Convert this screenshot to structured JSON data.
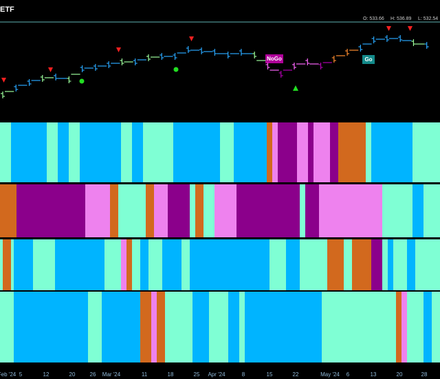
{
  "header": {
    "title": "ETF",
    "open": "O: 533.66",
    "high": "H: 536.89",
    "low": "L: 532.54"
  },
  "labels": {
    "nogo": "NoGo",
    "go": "Go"
  },
  "price_bars": {
    "values": [
      497,
      502,
      506,
      509,
      510,
      508,
      516,
      517,
      519,
      521,
      521,
      524,
      525,
      525,
      530,
      529,
      528,
      526,
      528,
      526,
      518,
      512,
      518,
      521,
      518,
      523,
      528,
      531,
      537,
      538,
      538,
      535,
      533
    ],
    "colors": [
      "#9cff9c",
      "#29a8ff",
      "#29a8ff",
      "#9cff9c",
      "#29a8ff",
      "#9cff9c",
      "#29a8ff",
      "#29a8ff",
      "#29a8ff",
      "#9cff9c",
      "#29a8ff",
      "#9cff9c",
      "#29a8ff",
      "#29a8ff",
      "#29a8ff",
      "#29a8ff",
      "#29a8ff",
      "#29a8ff",
      "#29a8ff",
      "#9cff9c",
      "#ff66ff",
      "#b000b0",
      "#ff66ff",
      "#ff66ff",
      "#b000b0",
      "#ff8c2e",
      "#ff8c2e",
      "#29a8ff",
      "#29a8ff",
      "#29a8ff",
      "#29a8ff",
      "#9cff9c",
      "#29a8ff"
    ]
  },
  "bands": [
    [
      [
        "#7fffd4",
        4
      ],
      [
        "#00b4ff",
        13
      ],
      [
        "#7fffd4",
        4
      ],
      [
        "#00b4ff",
        4
      ],
      [
        "#7fffd4",
        4
      ],
      [
        "#00b4ff",
        15
      ],
      [
        "#7fffd4",
        4
      ],
      [
        "#00b4ff",
        4
      ],
      [
        "#7fffd4",
        11
      ],
      [
        "#00b4ff",
        17
      ],
      [
        "#7fffd4",
        5
      ],
      [
        "#00b4ff",
        12
      ],
      [
        "#d2691e",
        2
      ],
      [
        "#ee82ee",
        2
      ],
      [
        "#8b008b",
        7
      ],
      [
        "#ee82ee",
        4
      ],
      [
        "#8b008b",
        2
      ],
      [
        "#ee82ee",
        6
      ],
      [
        "#8b008b",
        3
      ],
      [
        "#d2691e",
        10
      ],
      [
        "#7fffd4",
        2
      ],
      [
        "#00b4ff",
        15
      ],
      [
        "#7fffd4",
        10
      ]
    ],
    [
      [
        "#d2691e",
        6
      ],
      [
        "#8b008b",
        25
      ],
      [
        "#ee82ee",
        9
      ],
      [
        "#d2691e",
        3
      ],
      [
        "#7fffd4",
        10
      ],
      [
        "#d2691e",
        3
      ],
      [
        "#ee82ee",
        5
      ],
      [
        "#8b008b",
        8
      ],
      [
        "#7fffd4",
        2
      ],
      [
        "#d2691e",
        3
      ],
      [
        "#7fffd4",
        4
      ],
      [
        "#ee82ee",
        8
      ],
      [
        "#8b008b",
        23
      ],
      [
        "#7fffd4",
        2
      ],
      [
        "#8b008b",
        5
      ],
      [
        "#ee82ee",
        23
      ],
      [
        "#7fffd4",
        11
      ],
      [
        "#00b4ff",
        4
      ],
      [
        "#7fffd4",
        6
      ]
    ],
    [
      [
        "#7fffd4",
        1
      ],
      [
        "#d2691e",
        3
      ],
      [
        "#7fffd4",
        1
      ],
      [
        "#00b4ff",
        7
      ],
      [
        "#7fffd4",
        8
      ],
      [
        "#00b4ff",
        18
      ],
      [
        "#7fffd4",
        6
      ],
      [
        "#ee82ee",
        2
      ],
      [
        "#d2691e",
        2
      ],
      [
        "#7fffd4",
        3
      ],
      [
        "#00b4ff",
        3
      ],
      [
        "#7fffd4",
        5
      ],
      [
        "#00b4ff",
        7
      ],
      [
        "#7fffd4",
        3
      ],
      [
        "#00b4ff",
        29
      ],
      [
        "#7fffd4",
        6
      ],
      [
        "#00b4ff",
        5
      ],
      [
        "#7fffd4",
        10
      ],
      [
        "#d2691e",
        6
      ],
      [
        "#7fffd4",
        3
      ],
      [
        "#d2691e",
        7
      ],
      [
        "#8b008b",
        4
      ],
      [
        "#7fffd4",
        2
      ],
      [
        "#00b4ff",
        2
      ],
      [
        "#7fffd4",
        5
      ],
      [
        "#00b4ff",
        3
      ],
      [
        "#7fffd4",
        9
      ]
    ],
    [
      [
        "#7fffd4",
        5
      ],
      [
        "#00b4ff",
        27
      ],
      [
        "#7fffd4",
        5
      ],
      [
        "#00b4ff",
        14
      ],
      [
        "#d2691e",
        4
      ],
      [
        "#ee82ee",
        2
      ],
      [
        "#d2691e",
        3
      ],
      [
        "#7fffd4",
        10
      ],
      [
        "#00b4ff",
        6
      ],
      [
        "#7fffd4",
        7
      ],
      [
        "#00b4ff",
        4
      ],
      [
        "#7fffd4",
        2
      ],
      [
        "#00b4ff",
        28
      ],
      [
        "#7fffd4",
        27
      ],
      [
        "#d2691e",
        2
      ],
      [
        "#ee82ee",
        2
      ],
      [
        "#7fffd4",
        6
      ],
      [
        "#00b4ff",
        3
      ],
      [
        "#7fffd4",
        3
      ]
    ]
  ],
  "x_axis": [
    "Feb '24",
    "5",
    "12",
    "20",
    "26",
    "Mar '24",
    "11",
    "18",
    "25",
    "Apr '24",
    "8",
    "15",
    "22",
    "May '24",
    "6",
    "13",
    "20",
    "28"
  ]
}
